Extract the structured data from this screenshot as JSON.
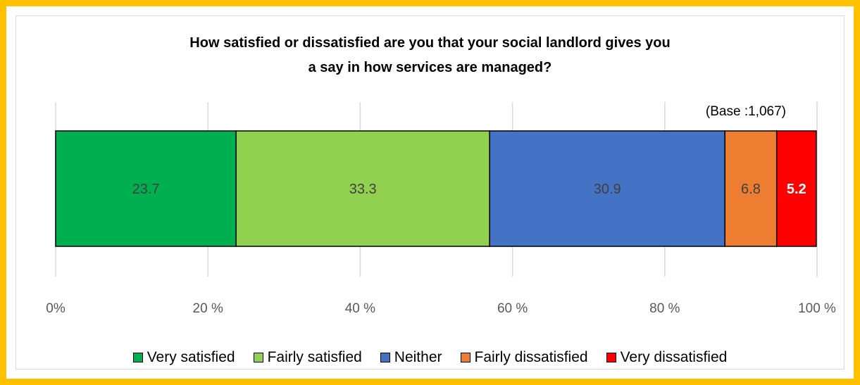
{
  "chart_data": {
    "type": "bar",
    "orientation": "horizontal-stacked",
    "title_line1": "How satisfied  or dissatisfied  are you that your social landlord  gives you",
    "title_line2": "a say in how services  are managed?",
    "annotation": "(Base :1,067)",
    "xlim": [
      0,
      100
    ],
    "xticks": [
      "0%",
      "20 %",
      "40 %",
      "60 %",
      "80 %",
      "100 %"
    ],
    "grid": true,
    "legend_placement": "bottom",
    "series": [
      {
        "name": "Very satisfied",
        "value": 23.7,
        "label": "23.7",
        "color": "#00B050",
        "label_color": "#404040",
        "label_bold": false
      },
      {
        "name": "Fairly satisfied",
        "value": 33.3,
        "label": "33.3",
        "color": "#92D050",
        "label_color": "#404040",
        "label_bold": false
      },
      {
        "name": "Neither",
        "value": 30.9,
        "label": "30.9",
        "color": "#4472C4",
        "label_color": "#404040",
        "label_bold": false
      },
      {
        "name": "Fairly dissatisfied",
        "value": 6.8,
        "label": "6.8",
        "color": "#ED7D31",
        "label_color": "#404040",
        "label_bold": false
      },
      {
        "name": "Very dissatisfied",
        "value": 5.2,
        "label": "5.2",
        "color": "#FF0000",
        "label_color": "#FFFFFF",
        "label_bold": true
      }
    ]
  }
}
